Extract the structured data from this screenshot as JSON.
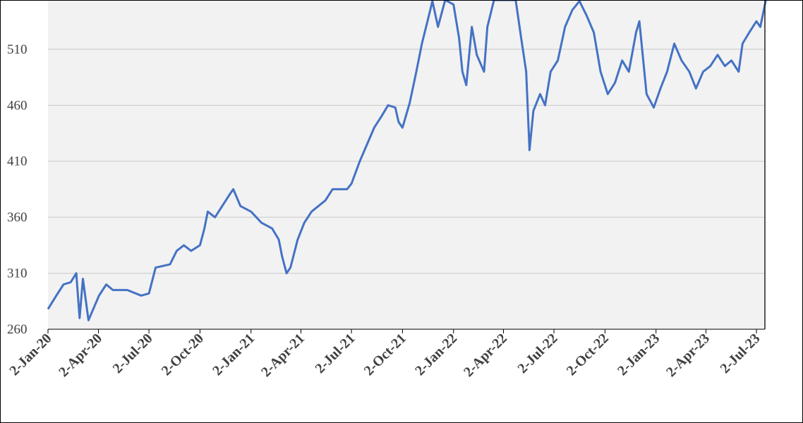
{
  "chart_data": {
    "type": "line",
    "x": [
      "2-Jan-20",
      "17-Jan-20",
      "30-Jan-20",
      "12-Feb-20",
      "22-Feb-20",
      "28-Feb-20",
      "5-Mar-20",
      "15-Mar-20",
      "21-Mar-20",
      "3-Apr-20",
      "16-Apr-20",
      "28-Apr-20",
      "24-May-20",
      "18-Jun-20",
      "2-Jul-20",
      "14-Jul-20",
      "9-Aug-20",
      "21-Aug-20",
      "3-Sep-20",
      "16-Sep-20",
      "2-Oct-20",
      "10-Oct-20",
      "16-Oct-20",
      "29-Oct-20",
      "11-Nov-20",
      "24-Nov-20",
      "1-Dec-20",
      "14-Dec-20",
      "2-Jan-21",
      "21-Jan-21",
      "9-Feb-21",
      "21-Feb-21",
      "27-Feb-21",
      "7-Mar-21",
      "14-Mar-21",
      "27-Mar-21",
      "8-Apr-21",
      "21-Apr-21",
      "16-May-21",
      "29-May-21",
      "24-Jun-21",
      "2-Jul-21",
      "17-Jul-21",
      "30-Jul-21",
      "12-Aug-21",
      "25-Aug-21",
      "6-Sep-21",
      "19-Sep-21",
      "25-Sep-21",
      "2-Oct-21",
      "15-Oct-21",
      "27-Oct-21",
      "6-Nov-21",
      "16-Nov-21",
      "25-Nov-21",
      "5-Dec-21",
      "18-Dec-21",
      "2-Jan-22",
      "12-Jan-22",
      "18-Jan-22",
      "25-Jan-22",
      "4-Feb-22",
      "13-Feb-22",
      "26-Feb-22",
      "4-Mar-22",
      "16-Mar-22",
      "2-Apr-22",
      "24-Apr-22",
      "4-May-22",
      "13-May-22",
      "19-May-22",
      "26-May-22",
      "7-Jun-22",
      "16-Jun-22",
      "26-Jun-22",
      "9-Jul-22",
      "22-Jul-22",
      "4-Aug-22",
      "17-Aug-22",
      "30-Aug-22",
      "12-Sep-22",
      "24-Sep-22",
      "7-Oct-22",
      "20-Oct-22",
      "2-Nov-22",
      "14-Nov-22",
      "27-Nov-22",
      "3-Dec-22",
      "10-Dec-22",
      "16-Dec-22",
      "29-Dec-22",
      "10-Jan-23",
      "22-Jan-23",
      "4-Feb-23",
      "17-Feb-23",
      "3-Mar-23",
      "15-Mar-23",
      "28-Mar-23",
      "10-Apr-23",
      "23-Apr-23",
      "6-May-23",
      "18-May-23",
      "31-May-23",
      "7-Jun-23",
      "19-Jun-23",
      "2-Jul-23",
      "9-Jul-23",
      "19-Jul-23"
    ],
    "series": [
      {
        "color": "#4472c4",
        "values": [
          278,
          290,
          300,
          302,
          310,
          270,
          305,
          268,
          275,
          290,
          300,
          295,
          295,
          290,
          292,
          315,
          318,
          330,
          335,
          330,
          335,
          350,
          365,
          360,
          370,
          380,
          385,
          370,
          365,
          355,
          350,
          340,
          325,
          310,
          315,
          340,
          355,
          365,
          375,
          385,
          385,
          390,
          410,
          425,
          440,
          450,
          460,
          458,
          445,
          440,
          462,
          490,
          515,
          535,
          553,
          530,
          554,
          550,
          520,
          490,
          478,
          530,
          505,
          490,
          530,
          554,
          554,
          554,
          520,
          490,
          420,
          455,
          470,
          460,
          490,
          500,
          530,
          545,
          553,
          540,
          525,
          490,
          470,
          480,
          500,
          490,
          525,
          535,
          500,
          470,
          458,
          475,
          490,
          515,
          500,
          490,
          475,
          490,
          495,
          505,
          495,
          500,
          490,
          515,
          525,
          535,
          530,
          554
        ]
      }
    ],
    "xlim": [
      "2-Jan-20",
      "20-Jul-23"
    ],
    "xticks": [
      "2-Jan-20",
      "2-Apr-20",
      "2-Jul-20",
      "2-Oct-20",
      "2-Jan-21",
      "2-Apr-21",
      "2-Jul-21",
      "2-Oct-21",
      "2-Jan-22",
      "2-Apr-22",
      "2-Jul-22",
      "2-Oct-22",
      "2-Jan-23",
      "2-Apr-23",
      "2-Jul-23"
    ],
    "ylim": [
      260,
      554
    ],
    "yticks": [
      260,
      310,
      360,
      410,
      460,
      510
    ],
    "grid": true
  }
}
